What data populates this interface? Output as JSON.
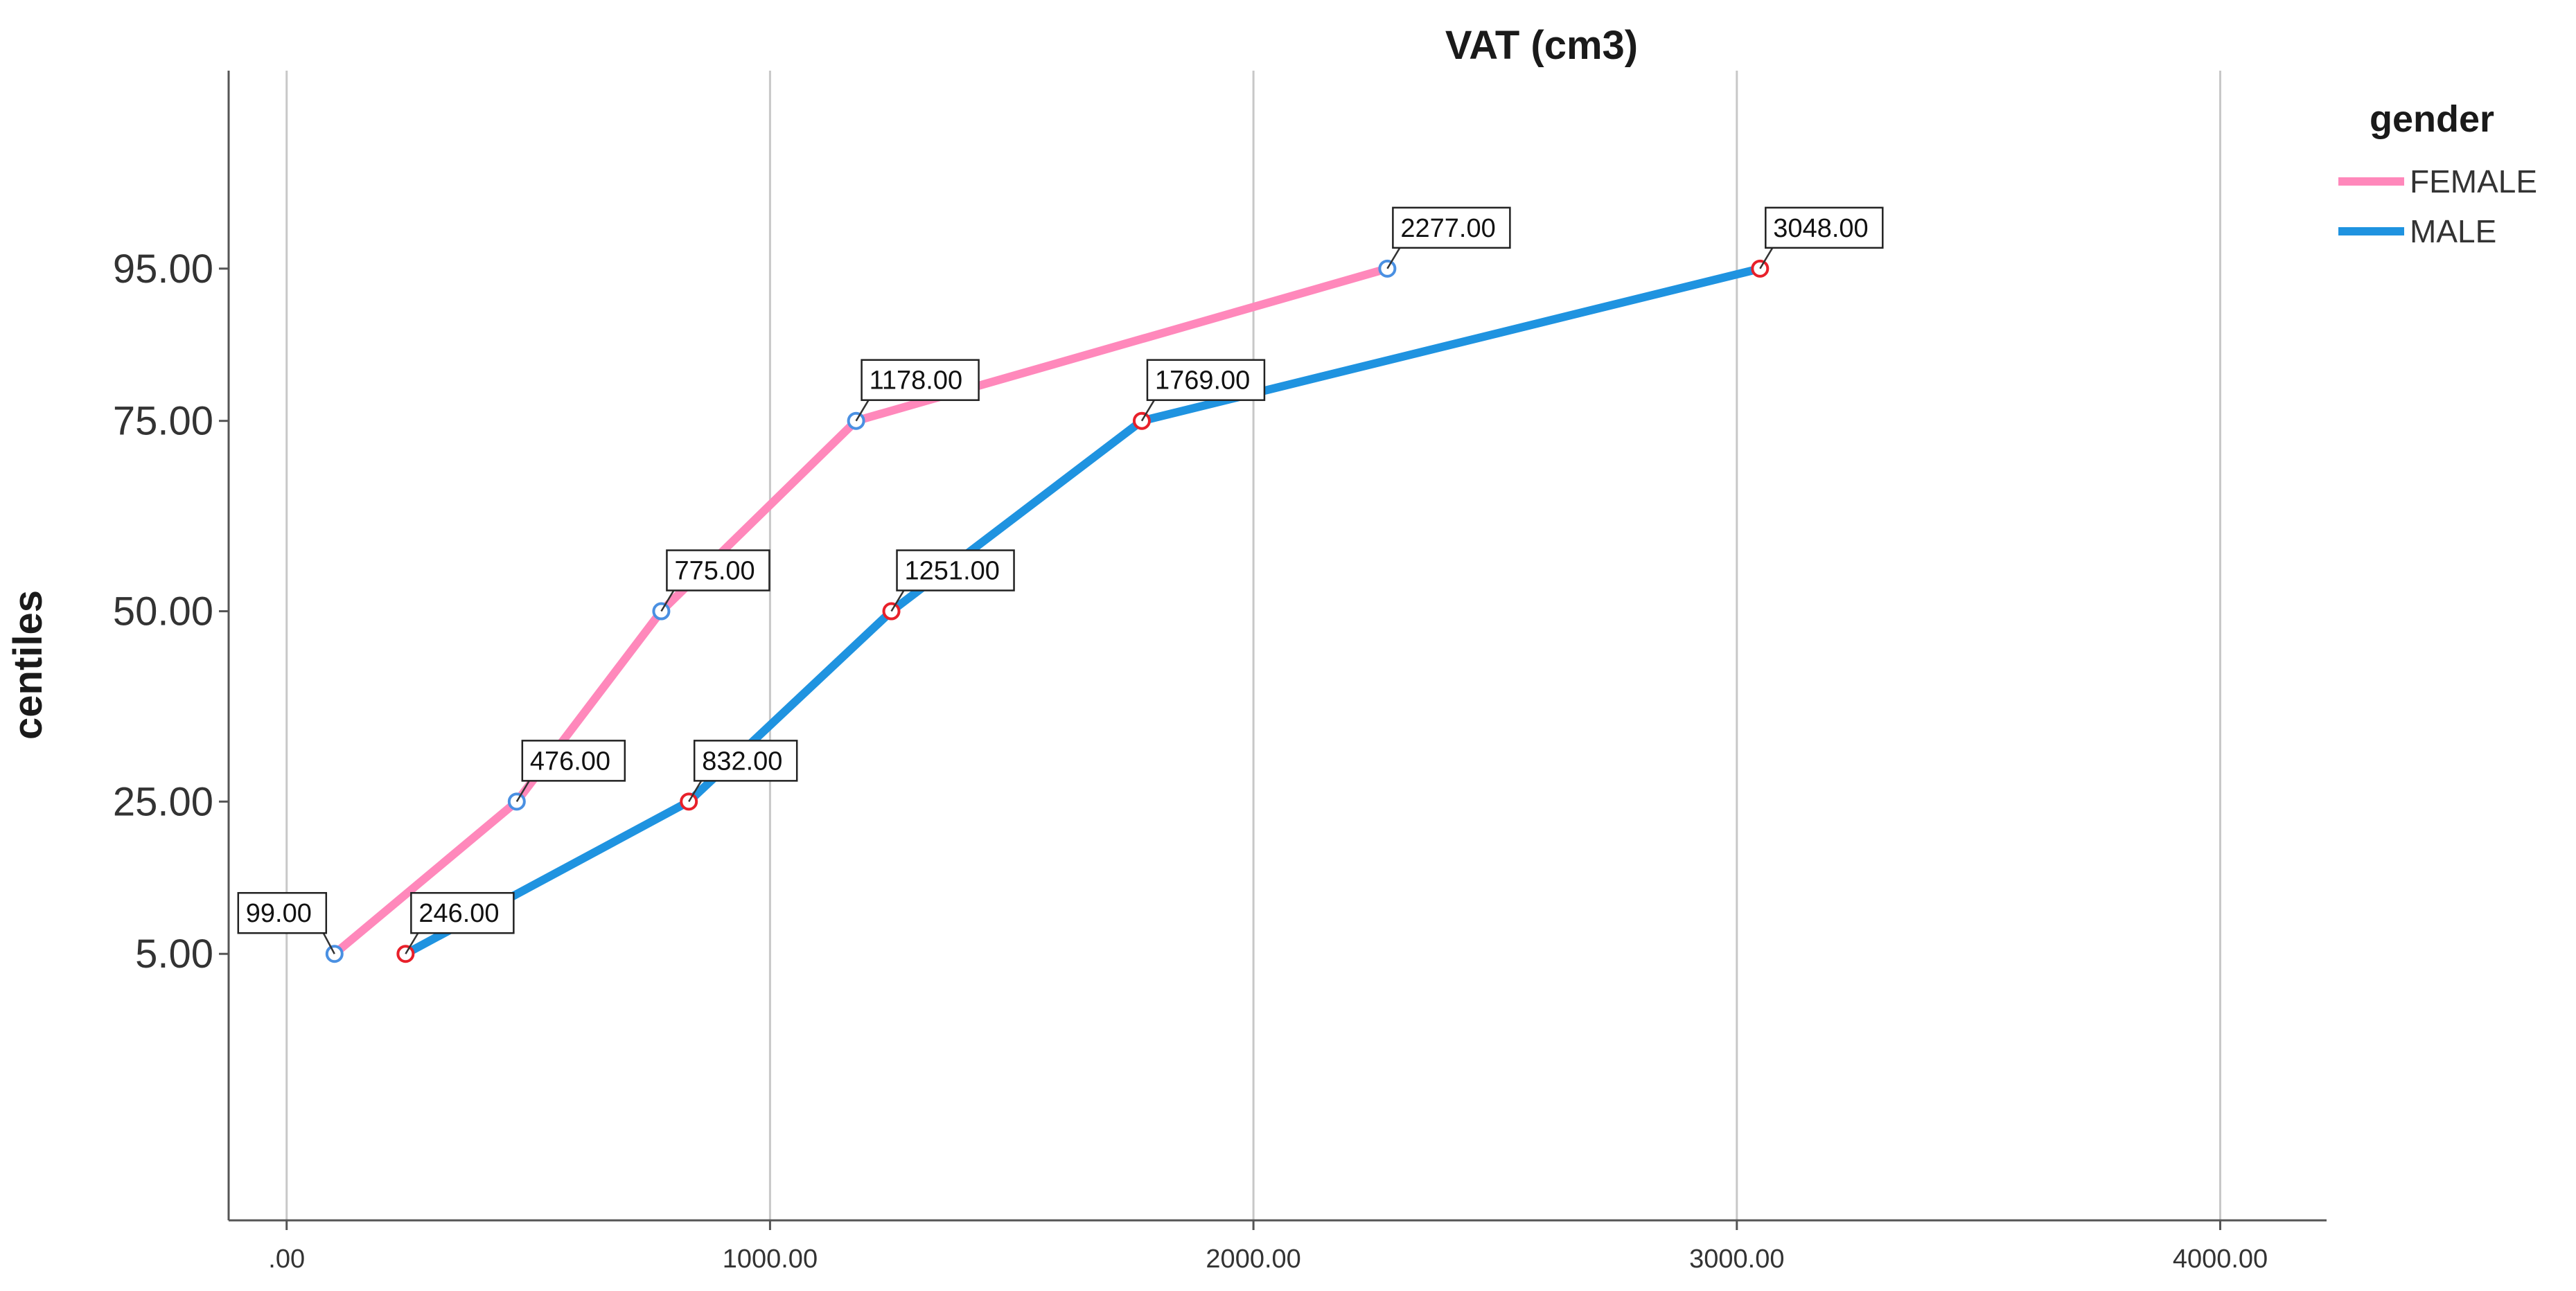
{
  "chart_data": {
    "type": "line",
    "title": "VAT (cm3)",
    "xlabel": "",
    "ylabel": "centiles",
    "xlim": [
      -120,
      4220
    ],
    "ylim": [
      -30,
      121
    ],
    "x_ticks": [
      ".00",
      "1000.00",
      "2000.00",
      "3000.00",
      "4000.00"
    ],
    "x_tick_values": [
      0,
      1000,
      2000,
      3000,
      4000
    ],
    "y_ticks": [
      "5.00",
      "25.00",
      "50.00",
      "75.00",
      "95.00"
    ],
    "y_tick_values": [
      5,
      25,
      50,
      75,
      95
    ],
    "grid": "vertical",
    "legend": {
      "title": "gender",
      "placement": "top-right"
    },
    "series": [
      {
        "name": "FEMALE",
        "color": "#ff88bb",
        "marker_color": "#4a90e2",
        "points": [
          {
            "x": 99,
            "y": 5,
            "label": "99.00"
          },
          {
            "x": 476,
            "y": 25,
            "label": "476.00"
          },
          {
            "x": 775,
            "y": 50,
            "label": "775.00"
          },
          {
            "x": 1178,
            "y": 75,
            "label": "1178.00"
          },
          {
            "x": 2277,
            "y": 95,
            "label": "2277.00"
          }
        ]
      },
      {
        "name": "MALE",
        "color": "#1f93e0",
        "marker_color": "#e8202a",
        "points": [
          {
            "x": 246,
            "y": 5,
            "label": "246.00"
          },
          {
            "x": 832,
            "y": 25,
            "label": "832.00"
          },
          {
            "x": 1251,
            "y": 50,
            "label": "1251.00"
          },
          {
            "x": 1769,
            "y": 75,
            "label": "1769.00"
          },
          {
            "x": 3048,
            "y": 95,
            "label": "3048.00"
          }
        ]
      }
    ]
  }
}
